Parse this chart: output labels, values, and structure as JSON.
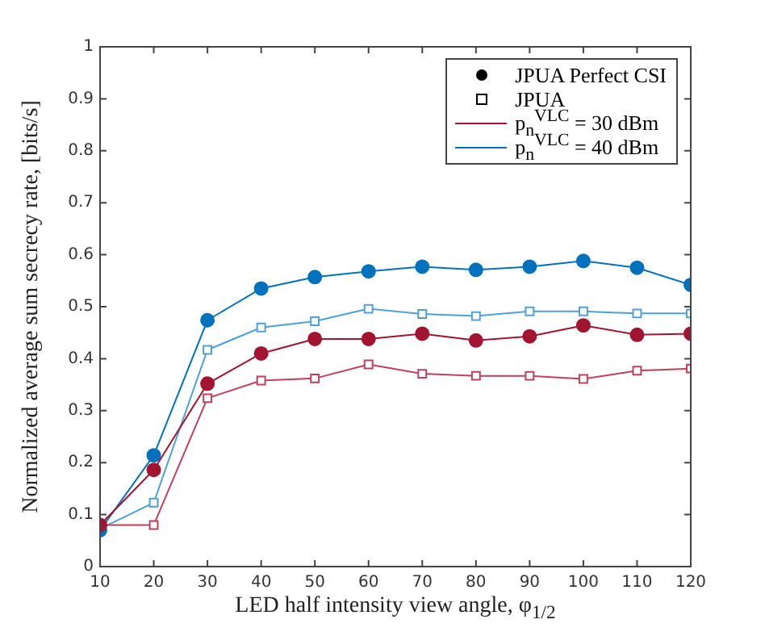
{
  "chart_data": {
    "type": "line",
    "xlabel": "LED half intensity view angle, φ$_{1/2}$",
    "ylabel": "Normalized average sum secrecy rate, [bits/s]",
    "x": [
      10,
      20,
      30,
      40,
      50,
      60,
      70,
      80,
      90,
      100,
      110,
      120
    ],
    "xlim": [
      10,
      120
    ],
    "xticks": [
      10,
      20,
      30,
      40,
      50,
      60,
      70,
      80,
      90,
      100,
      110,
      120
    ],
    "ylim": [
      0,
      1
    ],
    "yticks": [
      0,
      0.1,
      0.2,
      0.3,
      0.4,
      0.5,
      0.6,
      0.7,
      0.8,
      0.9,
      1
    ],
    "grid": false,
    "line_style": "solid",
    "annotations": [
      "JPUA Perfect CSI",
      "JPUA",
      "p$_{n}$$^{VLC}$ = 30 dBm",
      "p$_{n}$$^{VLC}$ = 40 dBm"
    ],
    "series": [
      {
        "color": "#a2142f",
        "marker": "circle",
        "values": [
          0.08,
          0.186,
          0.352,
          0.41,
          0.438,
          0.438,
          0.448,
          0.435,
          0.443,
          0.464,
          0.446,
          0.448
        ]
      },
      {
        "color": "#c0405c",
        "marker": "square",
        "values": [
          0.08,
          0.08,
          0.324,
          0.358,
          0.362,
          0.389,
          0.371,
          0.367,
          0.367,
          0.361,
          0.377,
          0.381
        ]
      },
      {
        "color": "#0072bd",
        "marker": "circle",
        "values": [
          0.07,
          0.214,
          0.474,
          0.535,
          0.557,
          0.568,
          0.577,
          0.571,
          0.577,
          0.588,
          0.575,
          0.542
        ]
      },
      {
        "color": "#4da0d8",
        "marker": "square",
        "values": [
          0.073,
          0.123,
          0.417,
          0.46,
          0.472,
          0.496,
          0.486,
          0.482,
          0.491,
          0.491,
          0.487,
          0.487
        ]
      }
    ]
  }
}
